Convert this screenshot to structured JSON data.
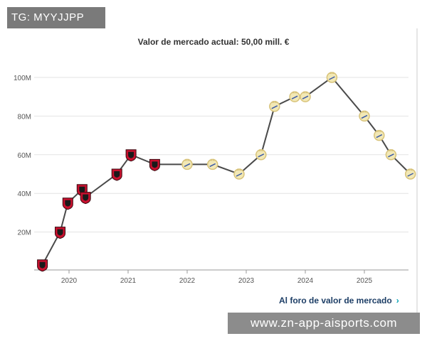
{
  "overlay": {
    "tg_text": "TG: MYYJJPP"
  },
  "footer": {
    "forum_link": "Al foro de valor de mercado",
    "watermark": "www.zn-app-aisports.com"
  },
  "colors": {
    "line": "#4a4a4a",
    "grid": "#e3e3e3",
    "club_rennes": "#c8102e",
    "club_real_madrid": "#d8c37a"
  },
  "chart_data": {
    "type": "line",
    "title": "Valor de mercado actual: 50,00 mill. €",
    "xlabel": "",
    "ylabel": "",
    "x_ticks": [
      "2020",
      "2021",
      "2022",
      "2023",
      "2024",
      "2025"
    ],
    "y_ticks": [
      "20M",
      "40M",
      "60M",
      "80M",
      "100M"
    ],
    "ylim": [
      0,
      105
    ],
    "xlim": [
      2019.5,
      2025.75
    ],
    "grid": true,
    "series": [
      {
        "values": [
          {
            "x": 2019.55,
            "y": 3,
            "club": "rennes"
          },
          {
            "x": 2019.85,
            "y": 20,
            "club": "rennes"
          },
          {
            "x": 2019.98,
            "y": 35,
            "club": "rennes"
          },
          {
            "x": 2020.22,
            "y": 42,
            "club": "rennes"
          },
          {
            "x": 2020.28,
            "y": 38,
            "club": "rennes"
          },
          {
            "x": 2020.81,
            "y": 50,
            "club": "rennes"
          },
          {
            "x": 2021.05,
            "y": 60,
            "club": "rennes"
          },
          {
            "x": 2021.45,
            "y": 55,
            "club": "rennes"
          },
          {
            "x": 2022.0,
            "y": 55,
            "club": "real_madrid"
          },
          {
            "x": 2022.43,
            "y": 55,
            "club": "real_madrid"
          },
          {
            "x": 2022.88,
            "y": 50,
            "club": "real_madrid"
          },
          {
            "x": 2023.25,
            "y": 60,
            "club": "real_madrid"
          },
          {
            "x": 2023.48,
            "y": 85,
            "club": "real_madrid"
          },
          {
            "x": 2023.82,
            "y": 90,
            "club": "real_madrid"
          },
          {
            "x": 2024.0,
            "y": 90,
            "club": "real_madrid"
          },
          {
            "x": 2024.45,
            "y": 100,
            "club": "real_madrid"
          },
          {
            "x": 2025.0,
            "y": 80,
            "club": "real_madrid"
          },
          {
            "x": 2025.25,
            "y": 70,
            "club": "real_madrid"
          },
          {
            "x": 2025.45,
            "y": 60,
            "club": "real_madrid"
          },
          {
            "x": 2025.78,
            "y": 50,
            "club": "real_madrid"
          }
        ]
      }
    ]
  }
}
